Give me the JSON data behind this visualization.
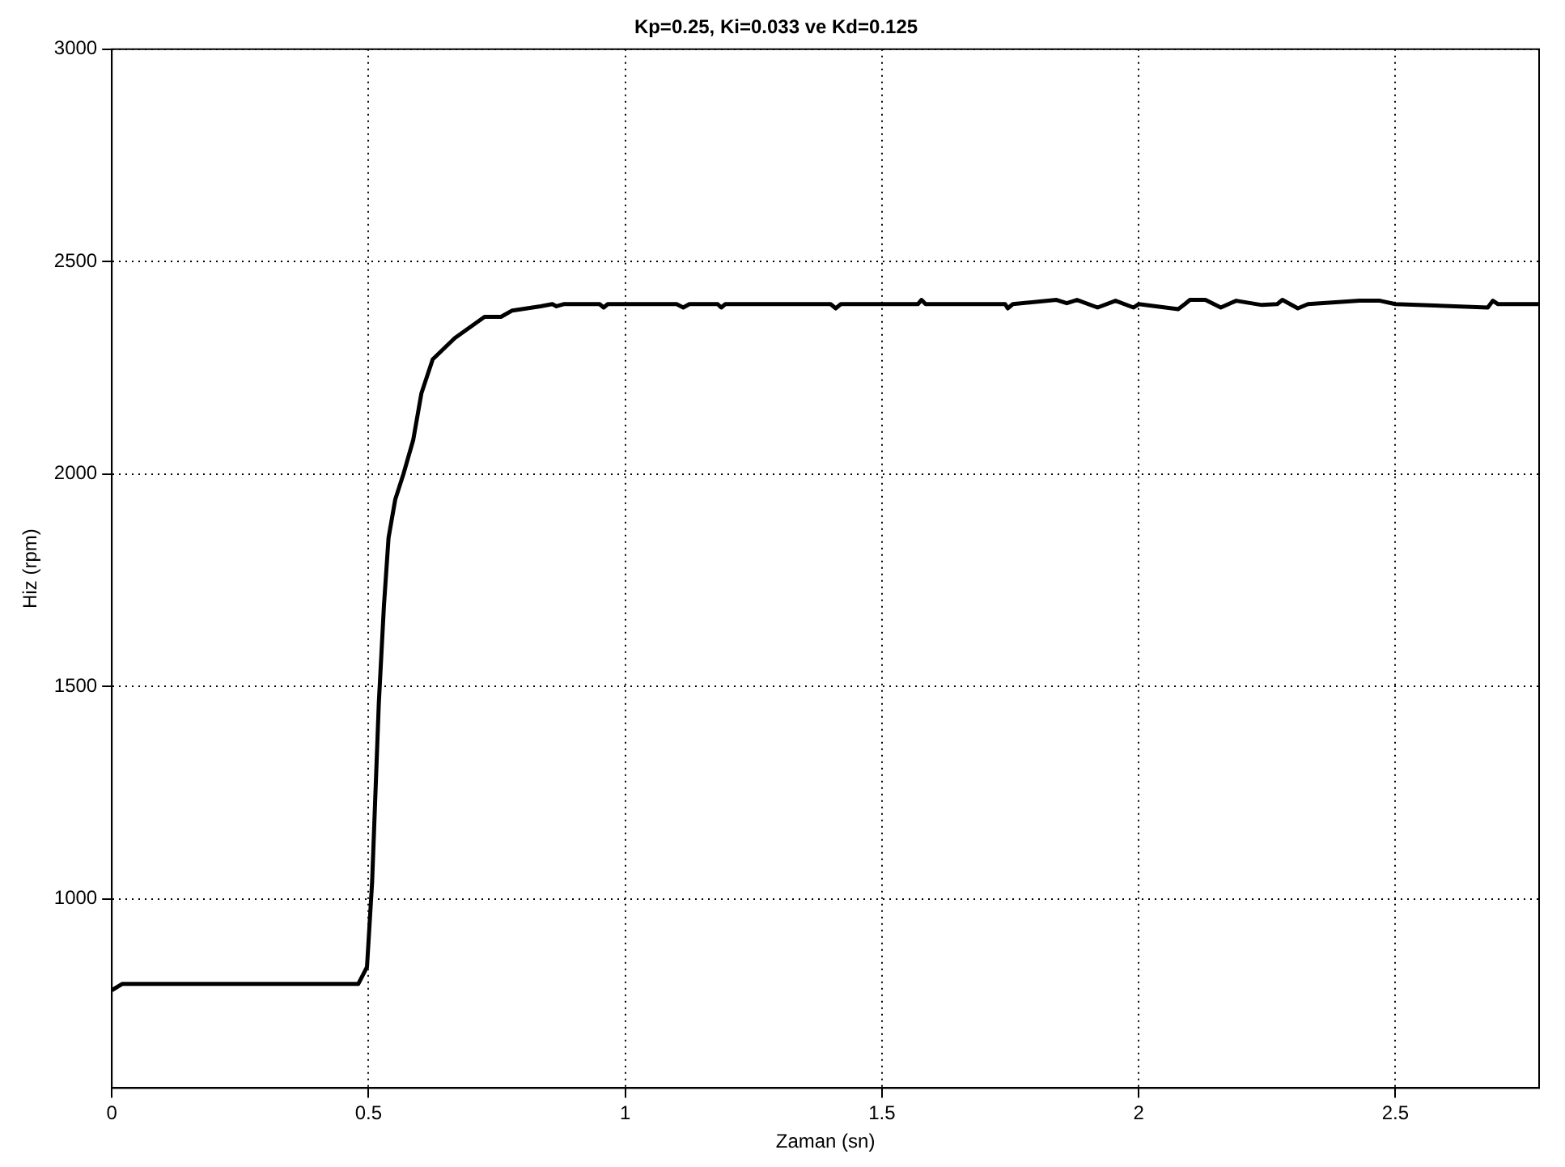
{
  "chart_data": {
    "type": "line",
    "title": "Kp=0.25, Ki=0.033 ve Kd=0.125",
    "xlabel": "Zaman (sn)",
    "ylabel": "Hiz (rpm)",
    "x": [
      0,
      0.02,
      0.48,
      0.497,
      0.507,
      0.52,
      0.53,
      0.539,
      0.552,
      0.568,
      0.587,
      0.603,
      0.625,
      0.668,
      0.726,
      0.758,
      0.78,
      0.835,
      0.858,
      0.866,
      0.88,
      0.95,
      0.958,
      0.966,
      1.1,
      1.113,
      1.125,
      1.18,
      1.187,
      1.195,
      1.4,
      1.41,
      1.42,
      1.57,
      1.577,
      1.585,
      1.74,
      1.745,
      1.755,
      1.84,
      1.86,
      1.88,
      1.92,
      1.955,
      1.99,
      2.0,
      2.077,
      2.09,
      2.1,
      2.13,
      2.16,
      2.19,
      2.24,
      2.27,
      2.28,
      2.31,
      2.33,
      2.43,
      2.47,
      2.5,
      2.68,
      2.69,
      2.7,
      2.78
    ],
    "series": [
      {
        "color": "#000000",
        "values": [
          785,
          800,
          800,
          840,
          1040,
          1460,
          1690,
          1850,
          1940,
          2000,
          2080,
          2190,
          2270,
          2320,
          2370,
          2370,
          2385,
          2395,
          2400,
          2395,
          2400,
          2400,
          2392,
          2400,
          2400,
          2392,
          2400,
          2400,
          2392,
          2400,
          2400,
          2390,
          2400,
          2400,
          2410,
          2400,
          2400,
          2390,
          2400,
          2410,
          2402,
          2410,
          2392,
          2408,
          2392,
          2400,
          2388,
          2400,
          2410,
          2410,
          2392,
          2408,
          2398,
          2400,
          2410,
          2390,
          2400,
          2408,
          2408,
          2400,
          2392,
          2408,
          2400,
          2400
        ]
      }
    ],
    "xlim": [
      0,
      2.78
    ],
    "xticks": [
      0,
      0.5,
      1,
      1.5,
      2,
      2.5
    ],
    "ylim": [
      555,
      3000
    ],
    "yticks": [
      1000,
      1500,
      2000,
      2500,
      3000
    ],
    "grid": true,
    "line_style": "solid",
    "marker": "none",
    "legend": false
  }
}
